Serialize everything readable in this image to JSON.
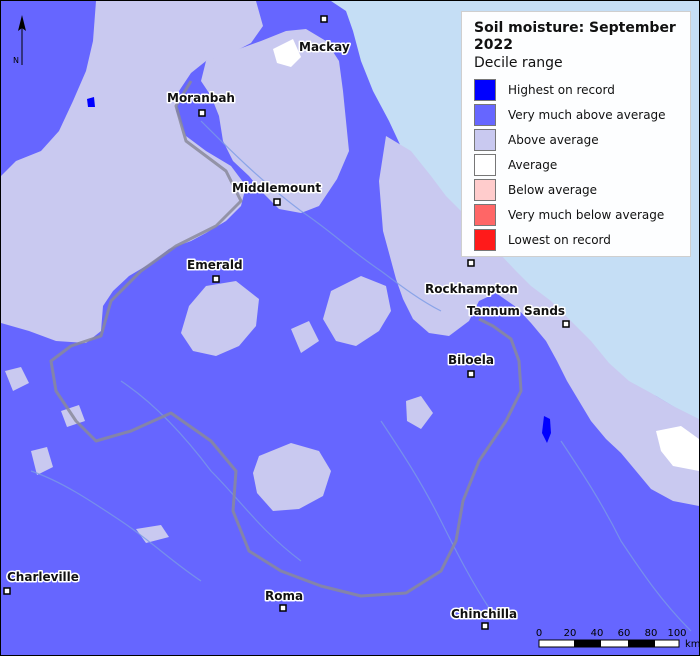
{
  "map": {
    "title": "Soil moisture: September 2022",
    "subtitle": "Decile range",
    "north_label": "N",
    "legend": [
      {
        "label": "Highest on record",
        "color": "#0000ff"
      },
      {
        "label": "Very much above average",
        "color": "#6666ff"
      },
      {
        "label": "Above average",
        "color": "#c9c9f0"
      },
      {
        "label": "Average",
        "color": "#ffffff"
      },
      {
        "label": "Below average",
        "color": "#ffcccc"
      },
      {
        "label": "Very much below average",
        "color": "#ff6666"
      },
      {
        "label": "Lowest on record",
        "color": "#ff1a1a"
      }
    ],
    "towns": [
      {
        "name": "Mackay"
      },
      {
        "name": "Moranbah"
      },
      {
        "name": "Middlemount"
      },
      {
        "name": "Emerald"
      },
      {
        "name": "Rockhampton"
      },
      {
        "name": "Tannum Sands"
      },
      {
        "name": "Biloela"
      },
      {
        "name": "Charleville"
      },
      {
        "name": "Roma"
      },
      {
        "name": "Chinchilla"
      }
    ],
    "scale": {
      "ticks": [
        "0",
        "20",
        "40",
        "60",
        "80",
        "100"
      ],
      "unit": "km"
    },
    "colors": {
      "sea": "#c5def5",
      "land_base": "#6666ff",
      "above_average": "#c9c9f0",
      "boundary": "#8a8a9a",
      "river": "#7a9be6"
    }
  }
}
